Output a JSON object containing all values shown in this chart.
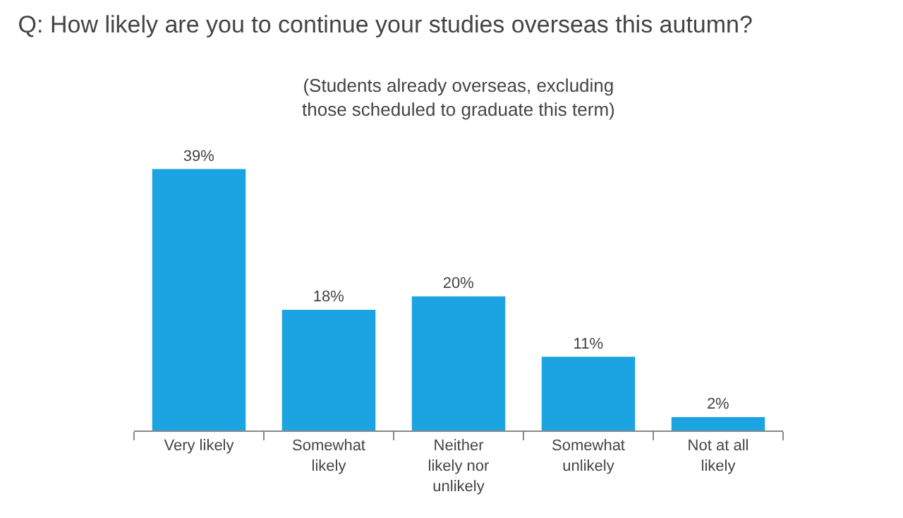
{
  "chart_data": {
    "type": "bar",
    "title": "Q: How likely are you to continue your studies overseas this autumn?",
    "subtitle": "(Students already overseas, excluding\nthose scheduled to graduate this term)",
    "categories": [
      "Very likely",
      "Somewhat\nlikely",
      "Neither\nlikely nor\nunlikely",
      "Somewhat\nunlikely",
      "Not at all\nlikely"
    ],
    "values": [
      39,
      18,
      20,
      11,
      2
    ],
    "color": "#1ba3e2",
    "value_labels": [
      "39%",
      "18%",
      "20%",
      "11%",
      "2%"
    ]
  }
}
